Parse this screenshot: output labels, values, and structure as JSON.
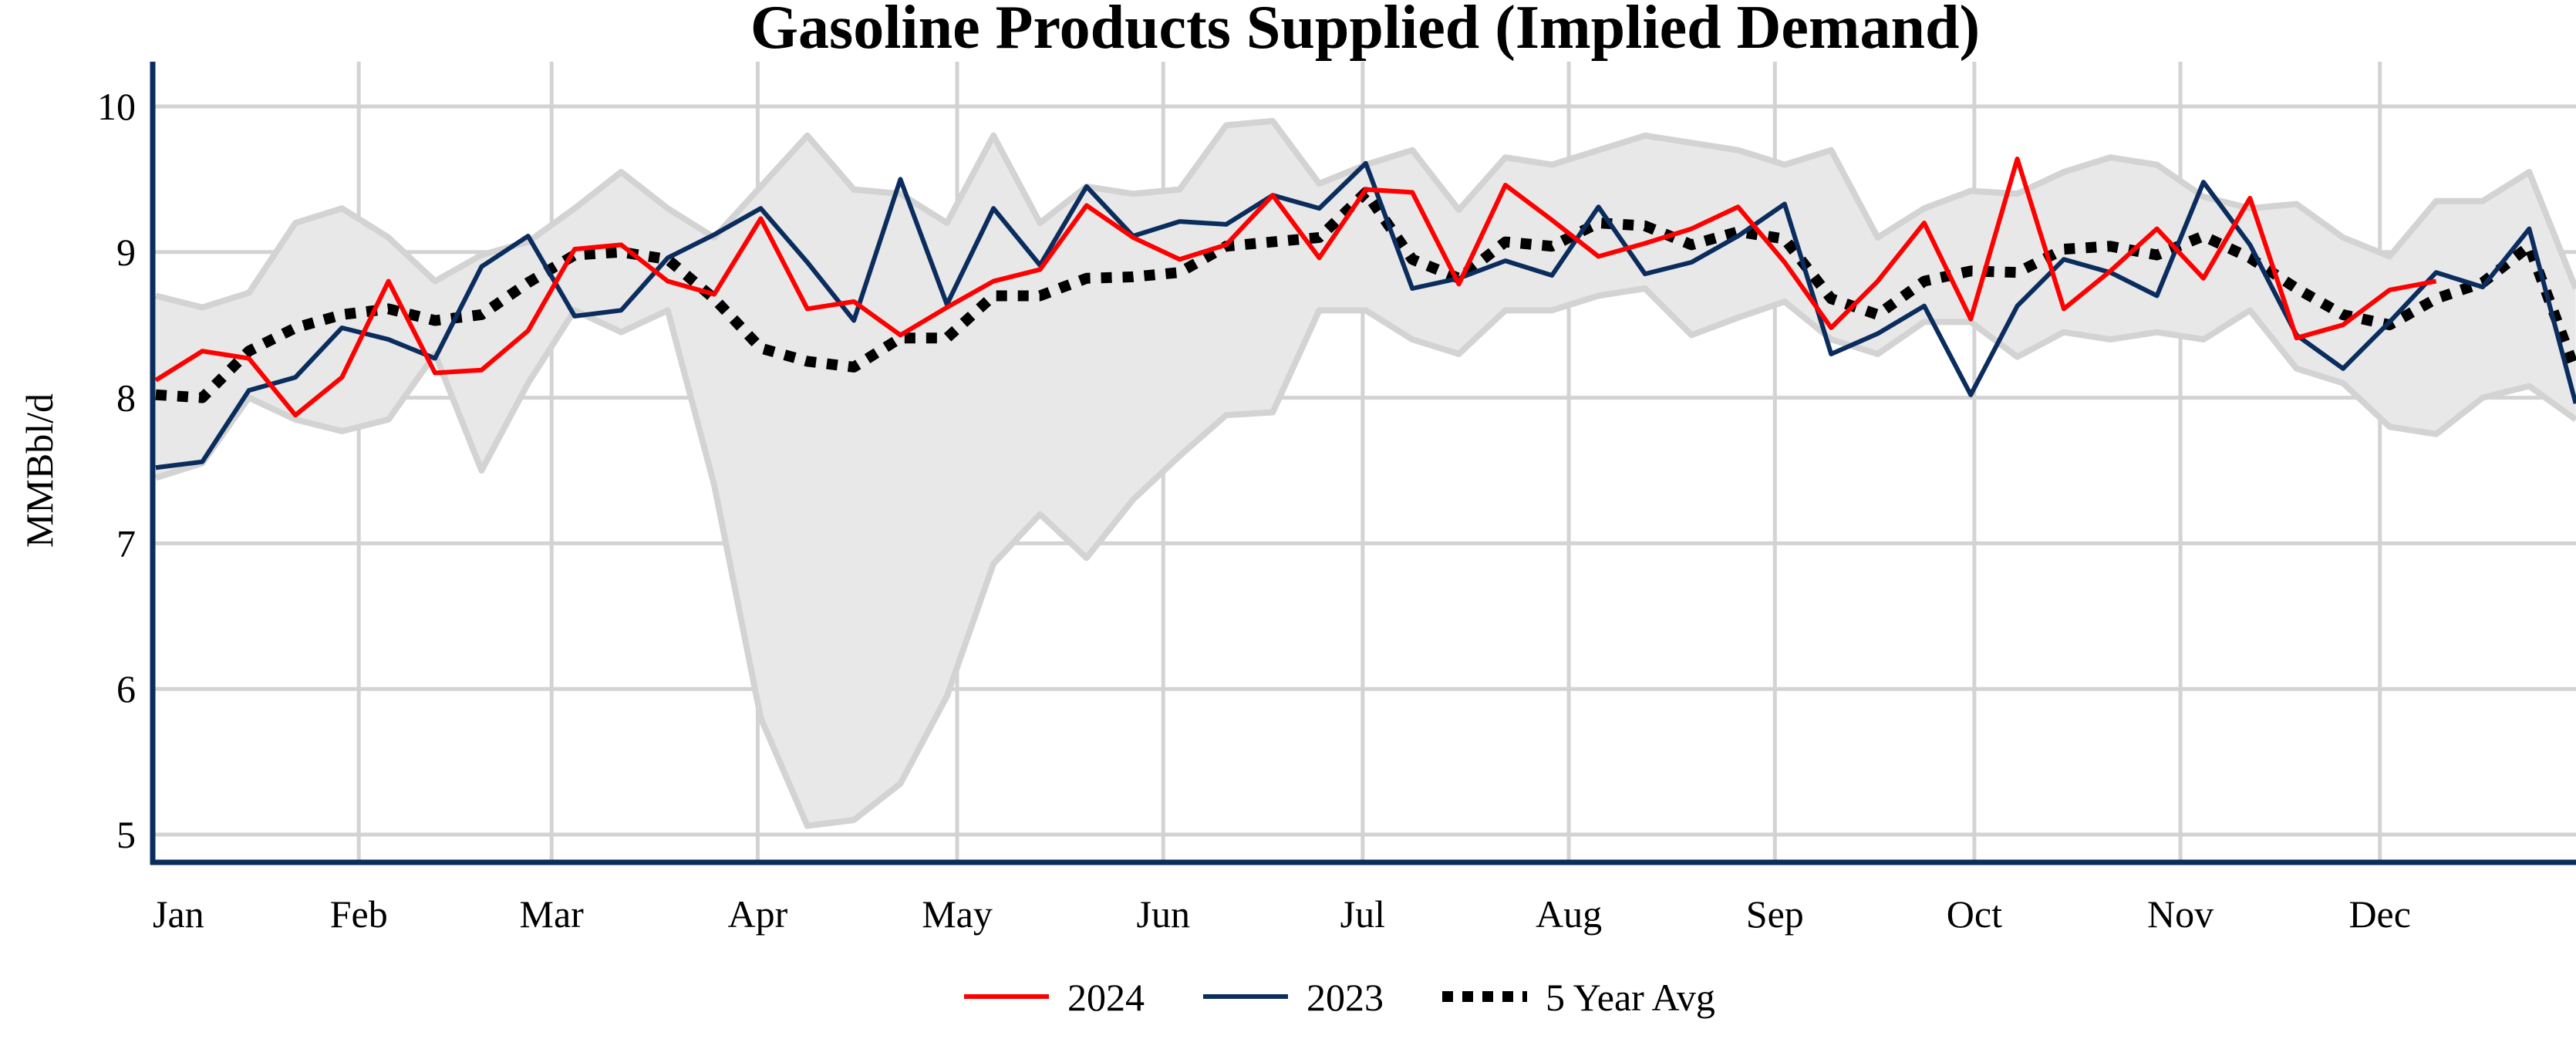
{
  "chart_data": {
    "type": "line",
    "title": "Gasoline Products Supplied (Implied Demand)",
    "xlabel": "",
    "ylabel": "MMBbl/d",
    "ylim": [
      4.8,
      10.3
    ],
    "yticks": [
      5,
      6,
      7,
      8,
      9,
      10
    ],
    "x_tick_labels": [
      "Jan",
      "Feb",
      "Mar",
      "Apr",
      "May",
      "Jun",
      "Jul",
      "Aug",
      "Sep",
      "Oct",
      "Nov",
      "Dec"
    ],
    "x_unit": "week of year",
    "grid": true,
    "legend_placement": "bottom-center",
    "colors": {
      "2024": "#ff0000",
      "2023": "#0a2d5e",
      "5 Year Avg": "#000000",
      "range_fill": "#e8e8e8",
      "range_line": "#d3d3d3",
      "axis": "#0a2d5e"
    },
    "range_band": {
      "upper": [
        8.7,
        8.62,
        8.72,
        9.2,
        9.3,
        9.1,
        8.8,
        8.98,
        9.07,
        9.3,
        9.55,
        9.3,
        9.1,
        9.45,
        9.8,
        9.43,
        9.4,
        9.2,
        9.8,
        9.2,
        9.45,
        9.4,
        9.43,
        9.87,
        9.9,
        9.47,
        9.6,
        9.7,
        9.29,
        9.65,
        9.6,
        9.7,
        9.8,
        9.75,
        9.7,
        9.6,
        9.7,
        9.1,
        9.3,
        9.42,
        9.4,
        9.55,
        9.65,
        9.6,
        9.38,
        9.3,
        9.33,
        9.1,
        8.97,
        9.35,
        9.35,
        9.55,
        8.75
      ],
      "lower": [
        7.45,
        7.55,
        8.0,
        7.85,
        7.77,
        7.85,
        8.3,
        7.5,
        8.1,
        8.6,
        8.45,
        8.6,
        7.4,
        5.8,
        5.06,
        5.1,
        5.35,
        5.95,
        6.86,
        7.2,
        6.9,
        7.3,
        7.6,
        7.88,
        7.9,
        8.6,
        8.6,
        8.4,
        8.3,
        8.6,
        8.6,
        8.7,
        8.75,
        8.43,
        8.55,
        8.66,
        8.4,
        8.3,
        8.52,
        8.52,
        8.28,
        8.45,
        8.4,
        8.45,
        8.4,
        8.6,
        8.2,
        8.1,
        7.8,
        7.75,
        8.0,
        8.08,
        7.85
      ]
    },
    "series": [
      {
        "name": "2024",
        "values": [
          8.12,
          8.32,
          8.27,
          7.88,
          8.14,
          8.8,
          8.17,
          8.19,
          8.46,
          9.02,
          9.05,
          8.8,
          8.71,
          9.23,
          8.61,
          8.66,
          8.43,
          8.62,
          8.8,
          8.88,
          9.32,
          9.1,
          8.95,
          9.05,
          9.39,
          8.96,
          9.43,
          9.41,
          8.78,
          9.46,
          9.22,
          8.97,
          9.06,
          9.16,
          9.31,
          8.93,
          8.48,
          8.8,
          9.2,
          8.54,
          9.64,
          8.61,
          8.87,
          9.16,
          8.82,
          9.37,
          8.41,
          8.5,
          8.74,
          8.8
        ]
      },
      {
        "name": "2023",
        "values": [
          7.52,
          7.56,
          8.05,
          8.14,
          8.48,
          8.4,
          8.27,
          8.9,
          9.11,
          8.56,
          8.6,
          8.96,
          9.12,
          9.3,
          8.93,
          8.53,
          9.5,
          8.64,
          9.3,
          8.91,
          9.45,
          9.11,
          9.21,
          9.19,
          9.39,
          9.3,
          9.61,
          8.75,
          8.82,
          8.94,
          8.84,
          9.31,
          8.85,
          8.93,
          9.11,
          9.33,
          8.3,
          8.44,
          8.63,
          8.02,
          8.63,
          8.95,
          8.86,
          8.7,
          9.48,
          9.05,
          8.43,
          8.2,
          8.52,
          8.86,
          8.76,
          9.16,
          7.96
        ]
      },
      {
        "name": "5 Year Avg",
        "values": [
          8.02,
          8.0,
          8.32,
          8.48,
          8.57,
          8.61,
          8.53,
          8.57,
          8.79,
          8.98,
          9.0,
          8.95,
          8.68,
          8.34,
          8.25,
          8.21,
          8.41,
          8.41,
          8.7,
          8.7,
          8.82,
          8.83,
          8.86,
          9.04,
          9.07,
          9.1,
          9.41,
          8.95,
          8.82,
          9.07,
          9.04,
          9.2,
          9.18,
          9.05,
          9.14,
          9.09,
          8.68,
          8.57,
          8.8,
          8.87,
          8.86,
          9.02,
          9.04,
          8.98,
          9.11,
          8.96,
          8.75,
          8.57,
          8.5,
          8.68,
          8.79,
          9.04,
          8.18
        ]
      }
    ]
  }
}
